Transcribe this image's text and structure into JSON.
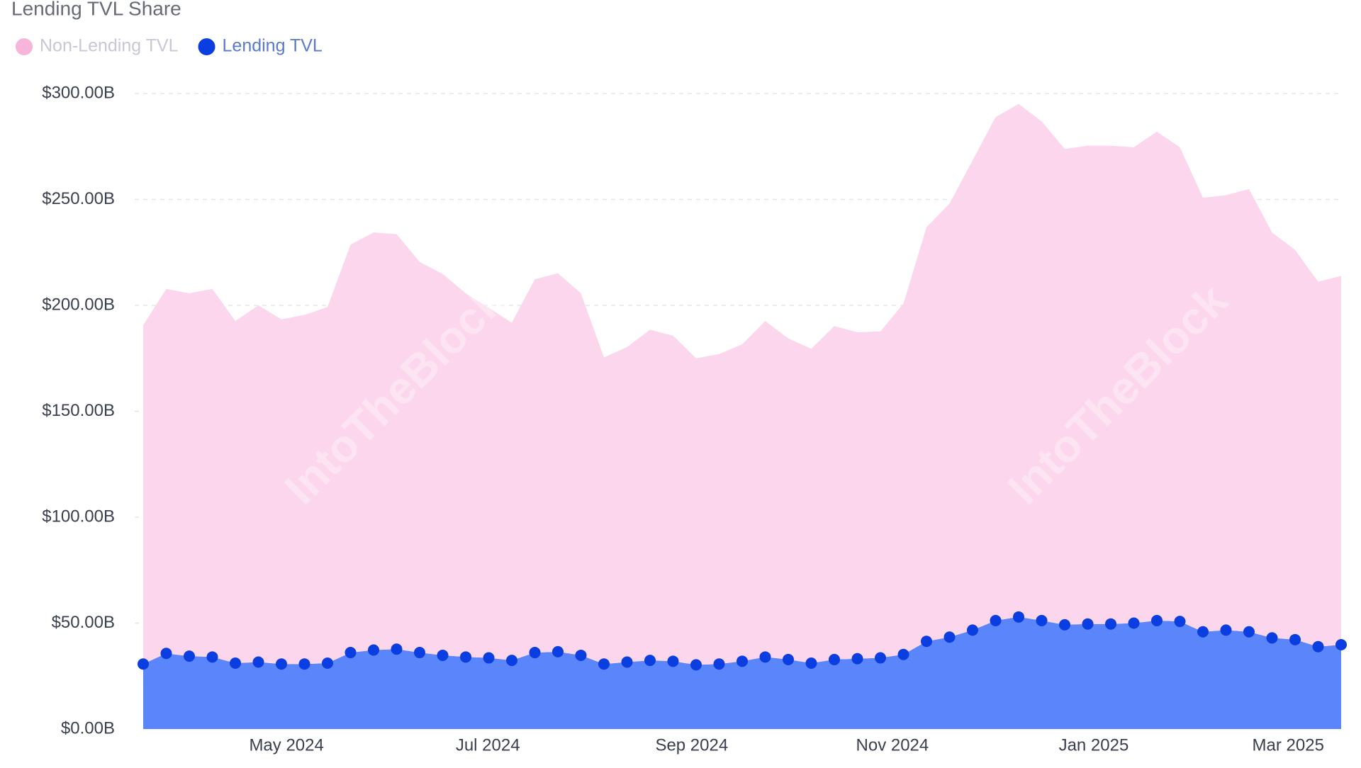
{
  "chart_data": {
    "type": "stacked-area",
    "title": "Lending TVL Share",
    "watermark": "IntoTheBlock",
    "categories": [
      null,
      null,
      null,
      null,
      null,
      null,
      null,
      null,
      null,
      null,
      null,
      null,
      null,
      null,
      null,
      null,
      null,
      null,
      null,
      null,
      null,
      null,
      null,
      null,
      null,
      null,
      null,
      null,
      null,
      null,
      null,
      null,
      null,
      null,
      null,
      null,
      null,
      null,
      null,
      null,
      null,
      null,
      null,
      null,
      null,
      null,
      null,
      null,
      null,
      null,
      null,
      null,
      null
    ],
    "xticks": [
      {
        "value": 6.22,
        "label": "May 2024"
      },
      {
        "value": 14.96,
        "label": "Jul 2024"
      },
      {
        "value": 23.81,
        "label": "Sep 2024"
      },
      {
        "value": 32.52,
        "label": "Nov 2024"
      },
      {
        "value": 41.26,
        "label": "Jan 2025"
      },
      {
        "value": 49.7,
        "label": "Mar 2025"
      }
    ],
    "ylim": [
      0,
      300
    ],
    "yticks": [
      {
        "value": 0,
        "label": "$0.00B"
      },
      {
        "value": 50,
        "label": "$50.00B"
      },
      {
        "value": 100,
        "label": "$100.00B"
      },
      {
        "value": 150,
        "label": "$150.00B"
      },
      {
        "value": 200,
        "label": "$200.00B"
      },
      {
        "value": 250,
        "label": "$250.00B"
      },
      {
        "value": 300,
        "label": "$300.00B"
      }
    ],
    "grid": true,
    "series": [
      {
        "name": "Non-Lending TVL",
        "color": "#fcd6ec",
        "marker_color": "#f7b5d9",
        "values": [
          159.9,
          172.1,
          171.3,
          173.8,
          161.5,
          168.4,
          162.7,
          164.8,
          168.1,
          192.6,
          197.1,
          195.9,
          184.4,
          180.0,
          171.7,
          165.2,
          159.4,
          176.2,
          178.7,
          170.9,
          144.7,
          148.7,
          156.1,
          153.7,
          144.7,
          146.3,
          149.6,
          158.6,
          151.6,
          148.4,
          157.4,
          154.1,
          154.1,
          165.6,
          195.5,
          204.6,
          221.7,
          237.7,
          242.2,
          235.7,
          224.6,
          225.8,
          225.8,
          224.6,
          230.8,
          223.8,
          204.9,
          205.3,
          209.0,
          191.4,
          184.0,
          172.2,
          174.1
        ]
      },
      {
        "name": "Lending TVL",
        "color": "#5b86fb",
        "marker_color": "#0a3ee0",
        "values": [
          30.7,
          35.7,
          34.4,
          34.0,
          31.1,
          31.6,
          30.7,
          30.7,
          31.1,
          36.1,
          37.3,
          37.7,
          36.1,
          34.8,
          34.0,
          33.6,
          32.4,
          36.1,
          36.5,
          34.8,
          30.7,
          31.6,
          32.4,
          32.0,
          30.3,
          30.7,
          32.0,
          34.0,
          32.8,
          31.1,
          32.8,
          33.2,
          33.6,
          35.2,
          41.4,
          43.4,
          46.7,
          51.2,
          52.9,
          51.2,
          49.2,
          49.6,
          49.6,
          50.0,
          51.2,
          50.8,
          45.9,
          46.7,
          45.9,
          43.0,
          42.2,
          38.9,
          39.8
        ]
      }
    ]
  }
}
